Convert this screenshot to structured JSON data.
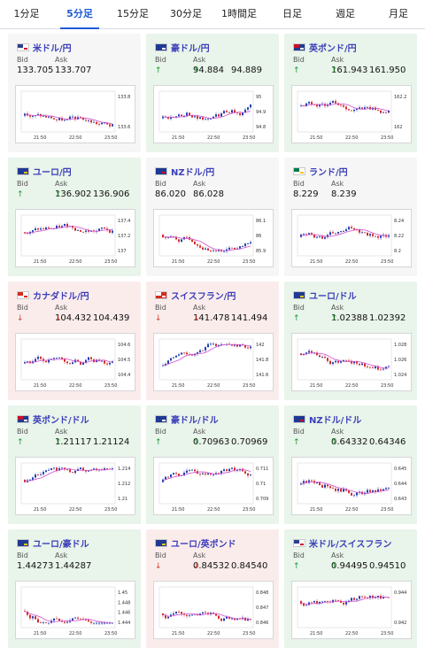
{
  "tabs": [
    {
      "label": "1分足",
      "active": false
    },
    {
      "label": "5分足",
      "active": true
    },
    {
      "label": "15分足",
      "active": false
    },
    {
      "label": "30分足",
      "active": false
    },
    {
      "label": "1時間足",
      "active": false
    },
    {
      "label": "日足",
      "active": false
    },
    {
      "label": "週足",
      "active": false
    },
    {
      "label": "月足",
      "active": false
    }
  ],
  "colors": {
    "up": "#1a9b32",
    "down": "#d13b2f",
    "accent": "#1e5bd8",
    "ma": "#d04fd0"
  },
  "cards": [
    {
      "pair": "米ドル/円",
      "flag": "us",
      "state": "neutral",
      "bid_label": "Bid",
      "ask_label": "Ask",
      "bid": "133.705",
      "ask": "133.707",
      "dir_bid": "",
      "dir_ask": "",
      "y_ticks": [
        "133.8",
        "133.6"
      ],
      "x_ticks": [
        "21:50",
        "22:50",
        "23:50"
      ]
    },
    {
      "pair": "豪ドル/円",
      "flag": "au",
      "state": "up",
      "bid_label": "Bid",
      "ask_label": "Ask",
      "bid": "94.884",
      "ask": "94.889",
      "dir_bid": "up",
      "dir_ask": "up",
      "y_ticks": [
        "95",
        "94.9",
        "94.8"
      ],
      "x_ticks": [
        "21:50",
        "22:50",
        "23:50"
      ]
    },
    {
      "pair": "英ポンド/円",
      "flag": "gb",
      "state": "up",
      "bid_label": "Bid",
      "ask_label": "Ask",
      "bid": "161.943",
      "ask": "161.950",
      "dir_bid": "up",
      "dir_ask": "up",
      "y_ticks": [
        "162.2",
        "162"
      ],
      "x_ticks": [
        "21:50",
        "22:50",
        "23:50"
      ]
    },
    {
      "pair": "ユーロ/円",
      "flag": "eu",
      "state": "up",
      "bid_label": "Bid",
      "ask_label": "Ask",
      "bid": "136.902",
      "ask": "136.906",
      "dir_bid": "up",
      "dir_ask": "up",
      "y_ticks": [
        "137.4",
        "137.2",
        "137"
      ],
      "x_ticks": [
        "21:50",
        "22:50",
        "23:50"
      ]
    },
    {
      "pair": "NZドル/円",
      "flag": "nz",
      "state": "neutral",
      "bid_label": "Bid",
      "ask_label": "Ask",
      "bid": "86.020",
      "ask": "86.028",
      "dir_bid": "",
      "dir_ask": "",
      "y_ticks": [
        "86.1",
        "86",
        "85.9"
      ],
      "x_ticks": [
        "21:50",
        "22:50",
        "23:50"
      ]
    },
    {
      "pair": "ランド/円",
      "flag": "za",
      "state": "neutral",
      "bid_label": "Bid",
      "ask_label": "Ask",
      "bid": "8.229",
      "ask": "8.239",
      "dir_bid": "",
      "dir_ask": "",
      "y_ticks": [
        "8.24",
        "8.22",
        "8.2"
      ],
      "x_ticks": [
        "21:50",
        "22:50",
        "23:50"
      ]
    },
    {
      "pair": "カナダドル/円",
      "flag": "ca",
      "state": "down",
      "bid_label": "Bid",
      "ask_label": "Ask",
      "bid": "104.432",
      "ask": "104.439",
      "dir_bid": "down",
      "dir_ask": "down",
      "y_ticks": [
        "104.6",
        "104.5",
        "104.4"
      ],
      "x_ticks": [
        "21:50",
        "22:50",
        "23:50"
      ]
    },
    {
      "pair": "スイスフラン/円",
      "flag": "ch",
      "state": "down",
      "bid_label": "Bid",
      "ask_label": "Ask",
      "bid": "141.478",
      "ask": "141.494",
      "dir_bid": "down",
      "dir_ask": "down",
      "y_ticks": [
        "142",
        "141.8",
        "141.6"
      ],
      "x_ticks": [
        "21:50",
        "22:50",
        "23:50"
      ]
    },
    {
      "pair": "ユーロ/ドル",
      "flag": "eu",
      "state": "up",
      "bid_label": "Bid",
      "ask_label": "Ask",
      "bid": "1.02388",
      "ask": "1.02392",
      "dir_bid": "up",
      "dir_ask": "up",
      "y_ticks": [
        "1.028",
        "1.026",
        "1.024"
      ],
      "x_ticks": [
        "21:50",
        "22:50",
        "23:50"
      ]
    },
    {
      "pair": "英ポンド/ドル",
      "flag": "gb",
      "state": "up",
      "bid_label": "Bid",
      "ask_label": "Ask",
      "bid": "1.21117",
      "ask": "1.21124",
      "dir_bid": "up",
      "dir_ask": "up",
      "y_ticks": [
        "1.214",
        "1.212",
        "1.21"
      ],
      "x_ticks": [
        "21:50",
        "22:50",
        "23:50"
      ]
    },
    {
      "pair": "豪ドル/ドル",
      "flag": "au",
      "state": "up",
      "bid_label": "Bid",
      "ask_label": "Ask",
      "bid": "0.70963",
      "ask": "0.70969",
      "dir_bid": "up",
      "dir_ask": "up",
      "y_ticks": [
        "0.711",
        "0.71",
        "0.709"
      ],
      "x_ticks": [
        "21:50",
        "22:50",
        "23:50"
      ]
    },
    {
      "pair": "NZドル/ドル",
      "flag": "nz",
      "state": "up",
      "bid_label": "Bid",
      "ask_label": "Ask",
      "bid": "0.64332",
      "ask": "0.64346",
      "dir_bid": "up",
      "dir_ask": "up",
      "y_ticks": [
        "0.645",
        "0.644",
        "0.643"
      ],
      "x_ticks": [
        "21:50",
        "22:50",
        "23:50"
      ]
    },
    {
      "pair": "ユーロ/豪ドル",
      "flag": "eu",
      "state": "up",
      "bid_label": "Bid",
      "ask_label": "Ask",
      "bid": "1.44273",
      "ask": "1.44287",
      "dir_bid": "",
      "dir_ask": "",
      "y_ticks": [
        "1.45",
        "1.448",
        "1.446",
        "1.444"
      ],
      "x_ticks": [
        "21:50",
        "22:50",
        "23:50"
      ]
    },
    {
      "pair": "ユーロ/英ポンド",
      "flag": "eu",
      "state": "down",
      "bid_label": "Bid",
      "ask_label": "Ask",
      "bid": "0.84532",
      "ask": "0.84540",
      "dir_bid": "down",
      "dir_ask": "down",
      "y_ticks": [
        "0.848",
        "0.847",
        "0.846"
      ],
      "x_ticks": [
        "21:50",
        "22:50",
        "23:50"
      ]
    },
    {
      "pair": "米ドル/スイスフラン",
      "flag": "us",
      "state": "up",
      "bid_label": "Bid",
      "ask_label": "Ask",
      "bid": "0.94495",
      "ask": "0.94510",
      "dir_bid": "up",
      "dir_ask": "up",
      "y_ticks": [
        "0.944",
        "0.942"
      ],
      "x_ticks": [
        "21:50",
        "22:50",
        "23:50"
      ]
    }
  ]
}
